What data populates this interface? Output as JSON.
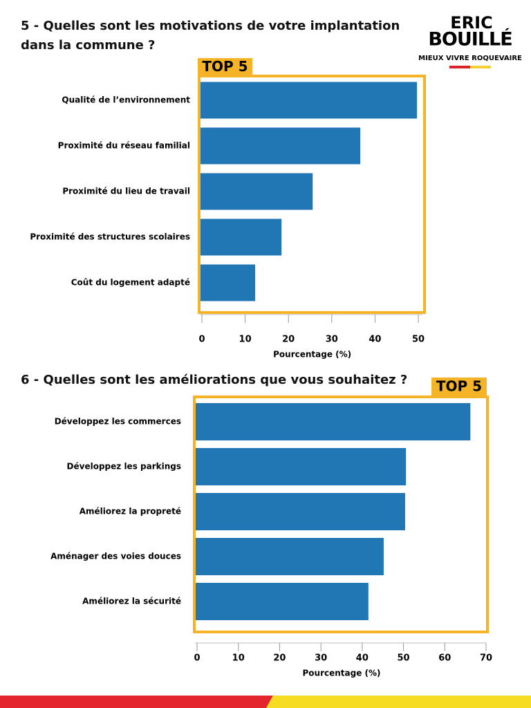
{
  "header": {
    "brand_line1": "ERIC",
    "brand_line2": "BOUILLÉ",
    "tagline": "MIEUX VIVRE ROQUEVAIRE"
  },
  "chart_data": [
    {
      "type": "bar",
      "orientation": "horizontal",
      "title": "5 - Quelles sont les motivations de votre implantation dans la commune ?",
      "annotation": "TOP 5",
      "categories": [
        "Qualité de l’environnement",
        "Proximité du réseau familial",
        "Proximité du lieu de travail",
        "Proximité des structures scolaires",
        "Coût du logement adapté"
      ],
      "values": [
        49.7,
        36.6,
        25.6,
        18.4,
        12.3
      ],
      "color": "#2077b4",
      "xlim": [
        0,
        51
      ],
      "xticks": [
        0,
        10,
        20,
        30,
        40,
        50
      ],
      "xlabel": "Pourcentage (%)"
    },
    {
      "type": "bar",
      "orientation": "horizontal",
      "title": "6 - Quelles sont les améliorations que vous souhaitez ?",
      "annotation": "TOP 5",
      "categories": [
        "Développez les commerces",
        "Développez les parkings",
        "Améliorez la propreté",
        "Aménager des voies douces",
        "Améliorez la sécurité"
      ],
      "values": [
        66.2,
        50.6,
        50.4,
        45.2,
        41.5
      ],
      "color": "#2077b4",
      "xlim": [
        0,
        70
      ],
      "xticks": [
        0,
        10,
        20,
        30,
        40,
        50,
        60,
        70
      ],
      "xlabel": "Pourcentage (%)"
    }
  ]
}
